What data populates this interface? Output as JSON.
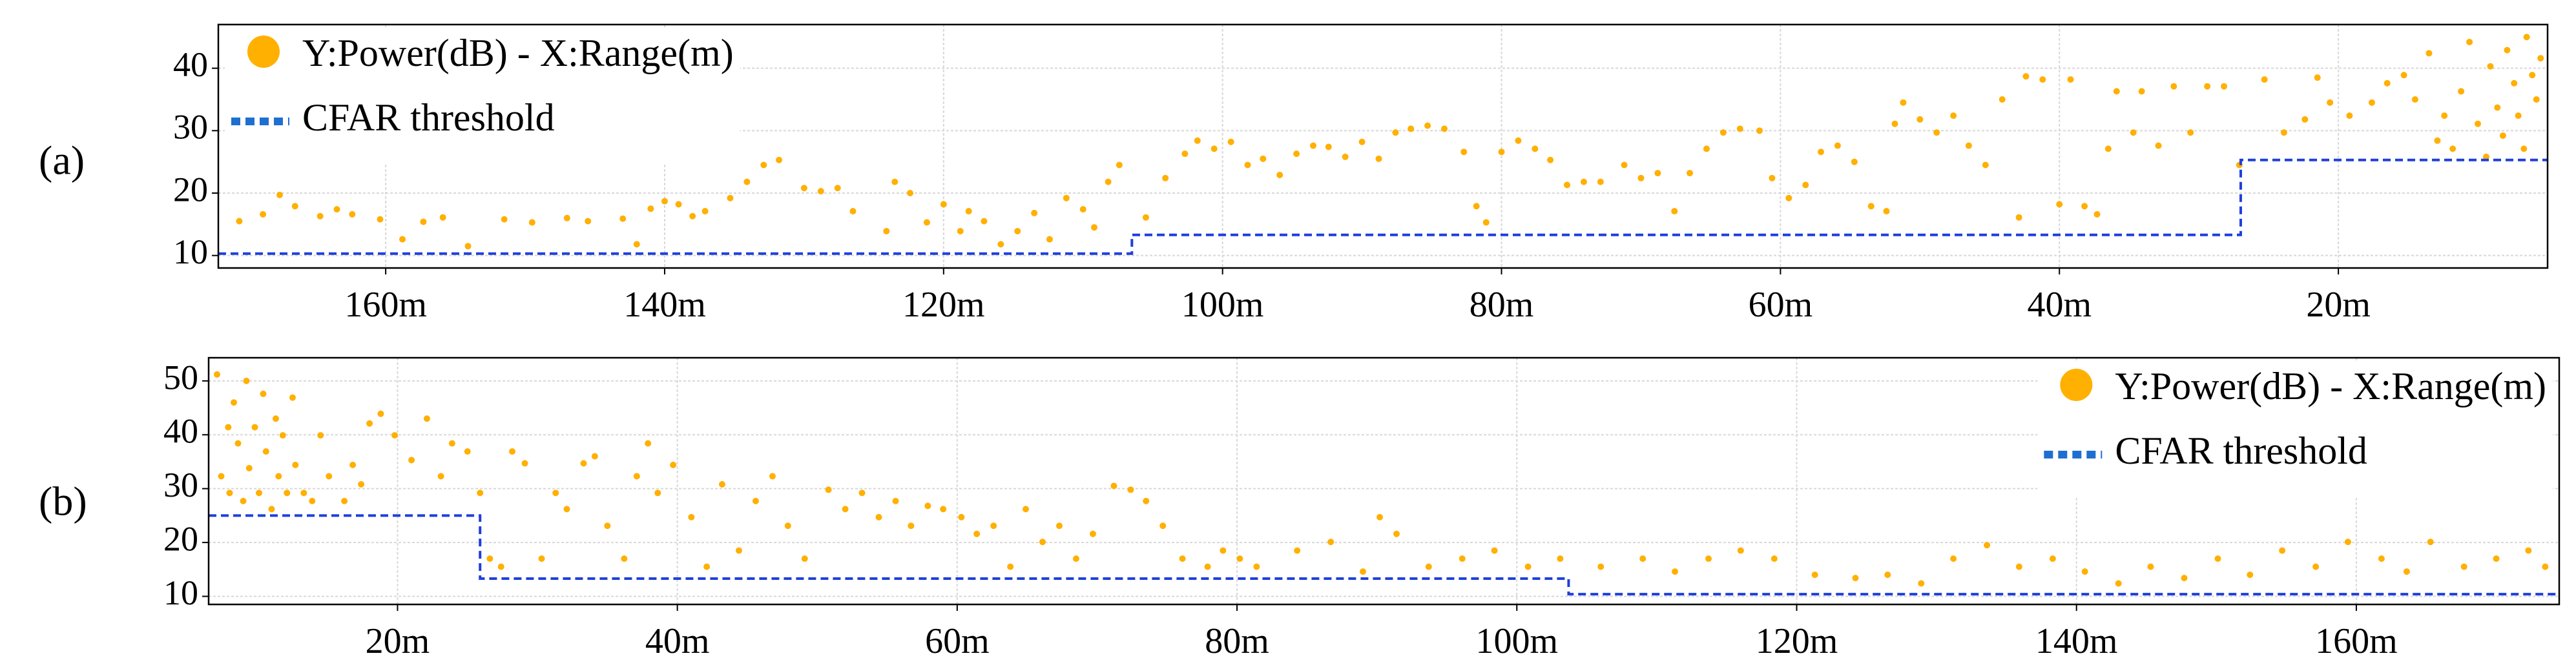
{
  "chart_data": [
    {
      "type": "scatter",
      "label": "(a)",
      "legend": "upper left",
      "grid": true,
      "xlim": [
        172,
        5
      ],
      "ylim": [
        8,
        47
      ],
      "xticks": [
        {
          "value": 160,
          "label": "160m"
        },
        {
          "value": 140,
          "label": "140m"
        },
        {
          "value": 120,
          "label": "120m"
        },
        {
          "value": 100,
          "label": "100m"
        },
        {
          "value": 80,
          "label": "80m"
        },
        {
          "value": 60,
          "label": "60m"
        },
        {
          "value": 40,
          "label": "40m"
        },
        {
          "value": 20,
          "label": "20m"
        }
      ],
      "yticks": [
        10,
        20,
        30,
        40
      ],
      "series": [
        {
          "name": "Y:Power(dB) -  X:Range(m)",
          "type": "scatter",
          "color": "#ffb000",
          "x": [
            170.5,
            168.8,
            167.6,
            166.5,
            164.7,
            163.5,
            162.4,
            160.4,
            158.8,
            157.3,
            155.9,
            154.1,
            151.5,
            149.5,
            147,
            145.5,
            143,
            142,
            141,
            140,
            139,
            138,
            137.1,
            135.3,
            134.1,
            132.9,
            131.8,
            130,
            128.8,
            127.6,
            126.5,
            124.1,
            123.5,
            122.4,
            121.2,
            120,
            118.8,
            118.2,
            117.1,
            115.9,
            114.7,
            113.5,
            112.4,
            111.2,
            110,
            109.2,
            108.2,
            107.4,
            105.5,
            104.1,
            102.7,
            101.8,
            100.6,
            99.4,
            98.2,
            97.1,
            95.9,
            94.7,
            93.5,
            92.4,
            91.2,
            90,
            88.8,
            87.6,
            86.5,
            85.3,
            84.1,
            82.7,
            81.8,
            81.1,
            80,
            78.8,
            77.6,
            76.5,
            75.3,
            74.1,
            72.9,
            71.2,
            70,
            68.8,
            67.6,
            66.5,
            65.3,
            64.1,
            62.9,
            61.5,
            60.6,
            59.4,
            58.2,
            57.1,
            55.9,
            54.7,
            53.5,
            52.4,
            51.8,
            51.2,
            50,
            48.8,
            47.6,
            46.5,
            45.3,
            44.1,
            42.9,
            42.4,
            41.2,
            40,
            39.2,
            38.2,
            37.3,
            36.5,
            35.9,
            34.7,
            34.1,
            32.9,
            31.8,
            30.6,
            29.4,
            28.2,
            27.1,
            25.3,
            23.9,
            22.4,
            21.5,
            20.6,
            19.2,
            17.6,
            16.5,
            15.3,
            14.5,
            13.5,
            12.9,
            12.4,
            11.8,
            11.2,
            10.6,
            10,
            9.4,
            9.1,
            8.6,
            8.2,
            7.9,
            7.4,
            7.1,
            6.7,
            6.5,
            6.1,
            5.8,
            5.5
          ],
          "values": [
            15.5,
            16.6,
            19.7,
            17.9,
            16.3,
            17.4,
            16.6,
            15.8,
            12.6,
            15.4,
            16.1,
            11.5,
            15.8,
            15.3,
            16,
            15.5,
            15.9,
            11.8,
            17.5,
            18.7,
            18.2,
            16.3,
            17.1,
            19.2,
            21.8,
            24.5,
            25.3,
            20.8,
            20.3,
            20.8,
            17.1,
            13.9,
            21.8,
            20,
            15.3,
            18.2,
            13.9,
            17.1,
            15.5,
            11.8,
            13.9,
            16.8,
            12.6,
            19.2,
            17.4,
            14.5,
            21.8,
            24.5,
            16.1,
            22.4,
            26.3,
            28.4,
            27.1,
            28.2,
            24.5,
            25.5,
            22.9,
            26.3,
            27.6,
            27.4,
            25.8,
            28.2,
            25.5,
            29.7,
            30.3,
            30.8,
            30.3,
            26.6,
            17.9,
            15.3,
            26.6,
            28.4,
            27.1,
            25.3,
            21.3,
            21.8,
            21.8,
            24.5,
            22.4,
            23.2,
            17.1,
            23.2,
            27.1,
            29.7,
            30.3,
            30,
            22.4,
            19.2,
            21.3,
            26.6,
            27.6,
            25,
            17.9,
            17.1,
            31.1,
            34.5,
            31.8,
            29.7,
            32.4,
            27.6,
            24.5,
            35,
            16.1,
            38.7,
            38.2,
            18.2,
            38.2,
            17.9,
            16.6,
            27.1,
            36.3,
            29.7,
            36.3,
            27.6,
            37.1,
            29.7,
            37.1,
            37.1,
            24.5,
            38.2,
            29.7,
            31.8,
            38.5,
            34.5,
            32.4,
            34.5,
            37.6,
            38.9,
            35,
            42.4,
            28.4,
            32.4,
            27.1,
            36.3,
            44.2,
            31.1,
            25.8,
            40.3,
            33.7,
            29.2,
            42.9,
            37.6,
            32.4,
            27.1,
            45,
            38.9,
            35,
            41.6
          ]
        },
        {
          "name": "CFAR threshold",
          "type": "line",
          "color": "#1f3fdd",
          "x": [
            172,
            106.5,
            106.5,
            27,
            27,
            5
          ],
          "values": [
            10.3,
            10.3,
            13.3,
            13.3,
            25.3,
            25.3
          ]
        }
      ]
    },
    {
      "type": "scatter",
      "label": "(b)",
      "legend": "upper right",
      "grid": true,
      "xlim": [
        6.5,
        174.5
      ],
      "ylim": [
        8.5,
        54.3
      ],
      "xticks": [
        {
          "value": 20,
          "label": "20m"
        },
        {
          "value": 40,
          "label": "40m"
        },
        {
          "value": 60,
          "label": "60m"
        },
        {
          "value": 80,
          "label": "80m"
        },
        {
          "value": 100,
          "label": "100m"
        },
        {
          "value": 120,
          "label": "120m"
        },
        {
          "value": 140,
          "label": "140m"
        },
        {
          "value": 160,
          "label": "160m"
        }
      ],
      "yticks": [
        10,
        20,
        30,
        40,
        50
      ],
      "series": [
        {
          "name": "Y:Power(dB) -  X:Range(m)",
          "type": "scatter",
          "color": "#ffb000",
          "x": [
            7.1,
            7.4,
            7.9,
            8.0,
            8.3,
            8.6,
            8.97,
            9.2,
            9.4,
            9.8,
            10.1,
            10.4,
            10.6,
            11,
            11.3,
            11.5,
            11.8,
            12.1,
            12.5,
            12.7,
            13.3,
            13.9,
            14.5,
            15.1,
            16.2,
            16.8,
            17.4,
            18,
            18.8,
            19.8,
            21,
            22.1,
            23.1,
            23.9,
            25,
            25.9,
            26.6,
            27.4,
            28.2,
            29.1,
            30.3,
            31.3,
            32.1,
            33.3,
            34.1,
            35,
            36.2,
            37.1,
            37.9,
            38.6,
            39.7,
            41,
            42.1,
            43.2,
            44.4,
            45.6,
            46.8,
            47.9,
            49.1,
            50.8,
            52,
            53.2,
            54.4,
            55.6,
            56.7,
            57.9,
            59,
            60.3,
            61.4,
            62.6,
            63.8,
            64.9,
            66.1,
            67.3,
            68.5,
            69.7,
            71.2,
            72.4,
            73.5,
            74.7,
            76.1,
            77.9,
            79,
            80.2,
            81.4,
            84.3,
            86.7,
            89,
            90.2,
            91.4,
            93.7,
            96.1,
            98.4,
            100.8,
            103.1,
            106,
            109,
            111.3,
            113.7,
            116,
            118.4,
            121.3,
            124.2,
            126.5,
            128.9,
            131.2,
            133.6,
            135.9,
            138.3,
            140.6,
            143,
            145.3,
            147.7,
            150.1,
            152.4,
            154.7,
            157.1,
            159.4,
            161.8,
            163.6,
            165.3,
            167.7,
            170,
            172.3,
            173.5
          ],
          "values": [
            51.2,
            32.3,
            41.4,
            29.2,
            46,
            38.4,
            27.7,
            50,
            33.8,
            41.4,
            29.2,
            47.6,
            36.9,
            26.2,
            43,
            32.3,
            39.9,
            29.2,
            46.9,
            34.4,
            29.2,
            27.7,
            39.9,
            32.3,
            27.7,
            34.4,
            30.8,
            42.1,
            43.9,
            39.9,
            35.3,
            43,
            32.3,
            38.4,
            36.9,
            29.2,
            17,
            15.5,
            36.9,
            34.7,
            17,
            29.2,
            26.2,
            34.7,
            36,
            23.1,
            17,
            32.3,
            38.4,
            29.2,
            34.4,
            24.7,
            15.5,
            30.8,
            18.5,
            27.7,
            32.3,
            23.1,
            17,
            29.8,
            26.2,
            29.2,
            24.7,
            27.7,
            23.1,
            26.8,
            26.2,
            24.7,
            21.6,
            23.1,
            15.5,
            26.2,
            20.1,
            23.1,
            17,
            21.6,
            30.5,
            29.8,
            27.7,
            23.1,
            17,
            15.5,
            18.5,
            17,
            15.5,
            18.5,
            20.1,
            14.6,
            24.7,
            21.6,
            15.5,
            17,
            18.5,
            15.5,
            17,
            15.5,
            17,
            14.6,
            17,
            18.5,
            17,
            14,
            13.4,
            14,
            12.4,
            17,
            19.5,
            15.5,
            17,
            14.6,
            12.4,
            15.5,
            13.4,
            17,
            14,
            18.5,
            15.5,
            20.1,
            17,
            14.6,
            20.1,
            15.5,
            17,
            18.5,
            15.5
          ]
        },
        {
          "name": "CFAR threshold",
          "type": "line",
          "color": "#1f3fdd",
          "x": [
            6.5,
            25.9,
            25.9,
            103.7,
            103.7,
            174.5
          ],
          "values": [
            25,
            25,
            13.3,
            13.3,
            10.4,
            10.4
          ]
        }
      ]
    }
  ]
}
